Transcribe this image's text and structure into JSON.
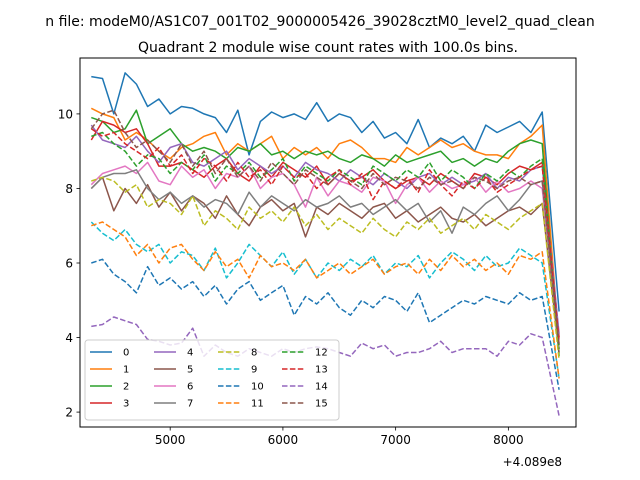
{
  "chart_data": {
    "type": "line",
    "title_line1": "n file: modeM0/AS1C07_001T02_9000005426_39028cztM0_level2_quad_clean",
    "title_line2": "Quadrant 2 module wise count rates with 100.0s bins.",
    "xlabel": "",
    "ylabel": "",
    "x_offset_label": "+4.089e8",
    "xlim": [
      4200,
      8600
    ],
    "ylim": [
      1.6,
      11.5
    ],
    "xticks": [
      5000,
      6000,
      7000,
      8000
    ],
    "yticks": [
      2,
      4,
      6,
      8,
      10
    ],
    "grid": false,
    "legend": {
      "placement": "lower-left",
      "columns": 4
    },
    "x": [
      4300,
      4400,
      4500,
      4600,
      4700,
      4800,
      4900,
      5000,
      5100,
      5200,
      5300,
      5400,
      5500,
      5600,
      5700,
      5800,
      5900,
      6000,
      6100,
      6200,
      6300,
      6400,
      6500,
      6600,
      6700,
      6800,
      6900,
      7000,
      7100,
      7200,
      7300,
      7400,
      7500,
      7600,
      7700,
      7800,
      7900,
      8000,
      8100,
      8200,
      8300,
      8450
    ],
    "series": [
      {
        "name": "0",
        "color": "#1f77b4",
        "dash": "solid",
        "values": [
          11.0,
          10.95,
          10.0,
          11.1,
          10.8,
          10.2,
          10.4,
          10.0,
          10.2,
          10.15,
          10.0,
          9.9,
          9.5,
          10.1,
          8.9,
          9.8,
          10.05,
          9.9,
          10.0,
          9.85,
          10.3,
          9.8,
          10.0,
          9.9,
          9.5,
          9.8,
          9.35,
          9.5,
          9.2,
          9.85,
          9.1,
          9.35,
          9.2,
          9.4,
          9.0,
          9.7,
          9.5,
          9.65,
          9.8,
          9.5,
          10.05,
          4.7
        ]
      },
      {
        "name": "1",
        "color": "#ff7f0e",
        "dash": "solid",
        "values": [
          10.15,
          10.0,
          9.9,
          9.3,
          9.5,
          9.3,
          9.0,
          8.8,
          9.1,
          9.2,
          9.4,
          9.5,
          8.9,
          9.2,
          9.0,
          9.2,
          9.4,
          8.8,
          9.1,
          8.9,
          9.1,
          8.8,
          9.2,
          9.3,
          9.1,
          8.8,
          8.8,
          8.7,
          9.1,
          8.9,
          9.1,
          9.3,
          9.1,
          9.2,
          9.0,
          8.9,
          8.9,
          8.8,
          9.2,
          9.4,
          9.7,
          3.8
        ]
      },
      {
        "name": "2",
        "color": "#2ca02c",
        "dash": "solid",
        "values": [
          9.9,
          9.8,
          9.5,
          9.6,
          10.1,
          9.2,
          9.4,
          9.6,
          9.2,
          9.0,
          9.1,
          9.0,
          8.8,
          9.1,
          9.0,
          9.2,
          8.9,
          9.0,
          8.8,
          9.0,
          8.9,
          9.0,
          8.8,
          8.7,
          8.9,
          8.8,
          8.6,
          8.9,
          8.7,
          8.8,
          8.9,
          9.0,
          8.7,
          8.8,
          8.6,
          8.8,
          8.7,
          9.0,
          9.2,
          9.3,
          9.2,
          3.5
        ]
      },
      {
        "name": "3",
        "color": "#d62728",
        "dash": "solid",
        "values": [
          9.3,
          9.8,
          9.7,
          9.5,
          9.6,
          9.2,
          8.6,
          8.6,
          8.7,
          8.5,
          8.3,
          8.6,
          8.8,
          8.4,
          8.2,
          8.6,
          8.3,
          8.7,
          8.5,
          8.3,
          8.6,
          8.1,
          8.4,
          8.2,
          8.3,
          8.5,
          8.2,
          8.0,
          8.2,
          8.3,
          8.1,
          8.4,
          8.2,
          8.0,
          8.4,
          8.3,
          8.1,
          8.4,
          8.6,
          8.5,
          8.7,
          4.0
        ]
      },
      {
        "name": "4",
        "color": "#9467bd",
        "dash": "solid",
        "values": [
          9.7,
          9.3,
          9.2,
          9.1,
          9.4,
          9.0,
          8.7,
          9.1,
          9.2,
          8.7,
          8.6,
          8.8,
          9.0,
          8.5,
          8.8,
          8.6,
          8.4,
          8.6,
          8.3,
          8.7,
          8.5,
          8.4,
          8.2,
          8.5,
          8.3,
          8.1,
          8.4,
          8.2,
          8.0,
          8.3,
          8.4,
          8.1,
          8.3,
          8.1,
          8.2,
          8.4,
          8.0,
          8.3,
          8.2,
          8.5,
          8.6,
          4.1
        ]
      },
      {
        "name": "5",
        "color": "#8c564b",
        "dash": "solid",
        "values": [
          8.0,
          8.3,
          7.4,
          8.0,
          7.6,
          8.1,
          7.5,
          7.9,
          7.4,
          7.8,
          7.6,
          7.2,
          7.8,
          7.3,
          7.0,
          7.5,
          7.7,
          7.4,
          7.6,
          6.7,
          7.5,
          7.3,
          7.6,
          7.4,
          7.2,
          7.5,
          7.6,
          7.2,
          7.4,
          7.1,
          7.3,
          7.5,
          7.2,
          7.1,
          7.3,
          7.0,
          7.2,
          7.4,
          7.5,
          7.3,
          7.6,
          3.6
        ]
      },
      {
        "name": "6",
        "color": "#e377c2",
        "dash": "solid",
        "values": [
          8.1,
          8.4,
          8.5,
          8.6,
          8.4,
          8.7,
          8.2,
          8.1,
          8.6,
          8.3,
          8.5,
          8.0,
          8.4,
          8.3,
          8.6,
          8.0,
          8.3,
          8.4,
          8.1,
          7.5,
          8.3,
          7.8,
          8.2,
          8.1,
          7.9,
          8.3,
          8.2,
          7.6,
          8.1,
          8.3,
          7.9,
          8.2,
          8.0,
          8.1,
          8.3,
          7.9,
          8.2,
          7.9,
          8.0,
          8.2,
          8.0,
          3.8
        ]
      },
      {
        "name": "7",
        "color": "#7f7f7f",
        "dash": "solid",
        "values": [
          8.0,
          8.3,
          8.4,
          8.4,
          8.5,
          8.0,
          7.7,
          7.9,
          7.6,
          7.8,
          7.5,
          7.7,
          7.6,
          7.3,
          7.9,
          7.5,
          7.8,
          7.6,
          7.4,
          7.7,
          7.5,
          7.6,
          7.8,
          7.5,
          7.6,
          7.3,
          7.5,
          7.7,
          7.4,
          7.6,
          7.1,
          7.4,
          6.8,
          7.5,
          7.3,
          7.6,
          7.8,
          7.4,
          7.7,
          8.1,
          8.2,
          3.7
        ]
      },
      {
        "name": "8",
        "color": "#bcbd22",
        "dash": "dashed",
        "values": [
          8.2,
          8.3,
          8.2,
          7.9,
          8.1,
          7.5,
          7.7,
          7.6,
          7.3,
          7.8,
          7.0,
          7.4,
          7.2,
          6.9,
          7.5,
          7.2,
          7.4,
          7.1,
          7.5,
          7.0,
          7.3,
          6.9,
          7.2,
          7.0,
          6.8,
          7.2,
          6.9,
          6.7,
          7.1,
          6.9,
          7.2,
          6.8,
          7.0,
          7.2,
          6.9,
          7.3,
          7.1,
          6.9,
          7.2,
          7.4,
          7.6,
          3.4
        ]
      },
      {
        "name": "9",
        "color": "#17becf",
        "dash": "dashed",
        "values": [
          7.1,
          6.8,
          6.6,
          6.9,
          6.5,
          6.3,
          6.5,
          6.0,
          6.3,
          6.2,
          5.8,
          6.4,
          5.6,
          6.0,
          6.5,
          6.2,
          5.9,
          6.3,
          5.7,
          6.1,
          5.6,
          6.0,
          5.8,
          6.1,
          5.9,
          6.2,
          5.7,
          6.0,
          5.9,
          6.2,
          5.6,
          6.0,
          6.3,
          6.1,
          5.8,
          6.2,
          5.9,
          6.0,
          6.4,
          6.2,
          6.0,
          2.9
        ]
      },
      {
        "name": "10",
        "color": "#1f77b4",
        "dash": "dashed",
        "values": [
          6.0,
          6.1,
          5.7,
          5.5,
          5.2,
          5.9,
          5.4,
          5.6,
          5.3,
          5.5,
          5.1,
          5.4,
          4.9,
          5.3,
          5.5,
          5.0,
          5.2,
          5.4,
          4.6,
          5.1,
          4.9,
          5.2,
          4.8,
          4.6,
          5.0,
          4.8,
          5.1,
          5.0,
          4.7,
          5.2,
          4.4,
          4.6,
          4.8,
          5.0,
          4.9,
          5.1,
          5.0,
          4.9,
          5.2,
          5.0,
          5.1,
          2.6
        ]
      },
      {
        "name": "11",
        "color": "#ff7f0e",
        "dash": "dashed",
        "values": [
          7.0,
          7.1,
          6.9,
          6.7,
          6.2,
          6.5,
          6.0,
          6.4,
          6.5,
          6.1,
          5.8,
          6.3,
          5.9,
          6.1,
          5.6,
          6.2,
          5.9,
          6.0,
          5.8,
          6.1,
          5.6,
          5.8,
          6.0,
          5.7,
          5.9,
          6.1,
          5.7,
          5.9,
          6.0,
          5.7,
          6.1,
          5.8,
          6.2,
          5.9,
          6.1,
          5.8,
          6.0,
          5.7,
          6.2,
          6.1,
          6.3,
          2.9
        ]
      },
      {
        "name": "12",
        "color": "#2ca02c",
        "dash": "dashed",
        "values": [
          9.4,
          9.5,
          9.2,
          9.0,
          8.6,
          8.9,
          8.8,
          8.4,
          8.7,
          8.5,
          8.9,
          8.2,
          8.6,
          8.4,
          8.7,
          8.3,
          8.5,
          8.8,
          8.2,
          8.6,
          8.4,
          8.2,
          8.5,
          8.3,
          8.1,
          8.6,
          8.4,
          8.2,
          8.5,
          8.3,
          8.7,
          8.2,
          8.5,
          8.3,
          8.0,
          8.4,
          8.2,
          8.5,
          8.3,
          8.6,
          8.8,
          3.7
        ]
      },
      {
        "name": "13",
        "color": "#d62728",
        "dash": "dashed",
        "values": [
          9.6,
          9.4,
          9.5,
          9.2,
          9.0,
          8.8,
          9.1,
          8.6,
          8.9,
          8.4,
          8.8,
          8.6,
          8.2,
          8.7,
          8.3,
          8.5,
          8.1,
          8.6,
          8.3,
          8.4,
          8.0,
          8.3,
          8.5,
          8.1,
          8.4,
          7.7,
          8.2,
          8.0,
          8.3,
          7.9,
          8.5,
          8.1,
          7.8,
          8.2,
          8.0,
          8.3,
          7.9,
          8.1,
          8.3,
          8.5,
          8.6,
          3.9
        ]
      },
      {
        "name": "14",
        "color": "#9467bd",
        "dash": "dashed",
        "values": [
          4.3,
          4.35,
          4.55,
          4.45,
          4.35,
          3.95,
          3.9,
          3.8,
          3.85,
          4.25,
          3.5,
          3.8,
          3.6,
          3.5,
          3.7,
          3.6,
          3.5,
          3.7,
          3.6,
          3.7,
          3.75,
          3.7,
          3.6,
          3.5,
          3.85,
          3.7,
          3.8,
          3.5,
          3.6,
          3.6,
          3.7,
          3.9,
          3.6,
          3.7,
          3.7,
          3.7,
          3.5,
          3.9,
          3.8,
          4.1,
          4.0,
          1.9
        ]
      },
      {
        "name": "15",
        "color": "#8c564b",
        "dash": "dashed",
        "values": [
          9.6,
          10.0,
          10.1,
          9.5,
          9.1,
          9.3,
          9.0,
          8.7,
          9.2,
          8.6,
          9.0,
          8.4,
          8.8,
          8.3,
          8.6,
          8.2,
          8.7,
          8.4,
          8.1,
          8.5,
          8.3,
          8.1,
          8.4,
          8.2,
          8.0,
          8.4,
          8.1,
          8.3,
          8.2,
          8.0,
          8.3,
          8.1,
          8.2,
          8.0,
          8.3,
          8.2,
          8.0,
          8.2,
          8.3,
          8.1,
          8.2,
          3.8
        ]
      }
    ]
  }
}
